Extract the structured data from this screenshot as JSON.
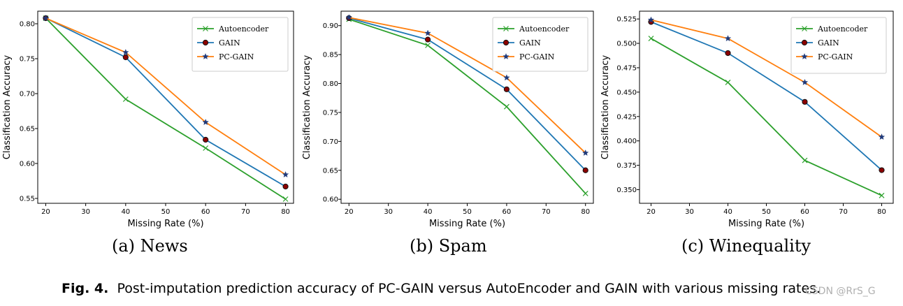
{
  "chart_data": [
    {
      "type": "line",
      "subcaption": "(a) News",
      "xlabel": "Missing Rate (%)",
      "ylabel": "Classification Accuracy",
      "x": [
        20,
        40,
        60,
        80
      ],
      "xticks": [
        20,
        30,
        40,
        50,
        60,
        70,
        80
      ],
      "xlim": [
        18,
        82
      ],
      "yticks": [
        0.55,
        0.6,
        0.65,
        0.7,
        0.75,
        0.8
      ],
      "ytick_labels": [
        "0.55",
        "0.60",
        "0.65",
        "0.70",
        "0.75",
        "0.80"
      ],
      "ylim": [
        0.543,
        0.818
      ],
      "legend_position": "top-right",
      "series": [
        {
          "name": "Autoencoder",
          "values": [
            0.808,
            0.692,
            0.622,
            0.549
          ],
          "color": "#2ca02c",
          "marker": "x"
        },
        {
          "name": "GAIN",
          "values": [
            0.808,
            0.752,
            0.634,
            0.567
          ],
          "color": "#1f77b4",
          "marker": "circle"
        },
        {
          "name": "PC-GAIN",
          "values": [
            0.808,
            0.759,
            0.659,
            0.584
          ],
          "color": "#ff7f0e",
          "marker": "star"
        }
      ]
    },
    {
      "type": "line",
      "subcaption": "(b) Spam",
      "xlabel": "Missing Rate (%)",
      "ylabel": "Classification Accuracy",
      "x": [
        20,
        40,
        60,
        80
      ],
      "xticks": [
        20,
        30,
        40,
        50,
        60,
        70,
        80
      ],
      "xlim": [
        18,
        82
      ],
      "yticks": [
        0.6,
        0.65,
        0.7,
        0.75,
        0.8,
        0.85,
        0.9
      ],
      "ytick_labels": [
        "0.60",
        "0.65",
        "0.70",
        "0.75",
        "0.80",
        "0.85",
        "0.90"
      ],
      "ylim": [
        0.593,
        0.925
      ],
      "legend_position": "top-right",
      "series": [
        {
          "name": "Autoencoder",
          "values": [
            0.911,
            0.866,
            0.76,
            0.61
          ],
          "color": "#2ca02c",
          "marker": "x"
        },
        {
          "name": "GAIN",
          "values": [
            0.913,
            0.876,
            0.79,
            0.65
          ],
          "color": "#1f77b4",
          "marker": "circle"
        },
        {
          "name": "PC-GAIN",
          "values": [
            0.914,
            0.887,
            0.81,
            0.68
          ],
          "color": "#ff7f0e",
          "marker": "star"
        }
      ]
    },
    {
      "type": "line",
      "subcaption": "(c) Winequality",
      "xlabel": "Missing Rate (%)",
      "ylabel": "Classification Accuracy",
      "x": [
        20,
        40,
        60,
        80
      ],
      "xticks": [
        20,
        30,
        40,
        50,
        60,
        70,
        80
      ],
      "xlim": [
        17,
        83
      ],
      "yticks": [
        0.35,
        0.375,
        0.4,
        0.425,
        0.45,
        0.475,
        0.5,
        0.525
      ],
      "ytick_labels": [
        "0.350",
        "0.375",
        "0.400",
        "0.425",
        "0.450",
        "0.475",
        "0.500",
        "0.525"
      ],
      "ylim": [
        0.336,
        0.533
      ],
      "legend_position": "top-right",
      "series": [
        {
          "name": "Autoencoder",
          "values": [
            0.505,
            0.46,
            0.38,
            0.344
          ],
          "color": "#2ca02c",
          "marker": "x"
        },
        {
          "name": "GAIN",
          "values": [
            0.522,
            0.49,
            0.44,
            0.37
          ],
          "color": "#1f77b4",
          "marker": "circle"
        },
        {
          "name": "PC-GAIN",
          "values": [
            0.524,
            0.505,
            0.46,
            0.404
          ],
          "color": "#ff7f0e",
          "marker": "star"
        }
      ]
    }
  ],
  "caption": {
    "label": "Fig. 4.",
    "text": "Post-imputation prediction accuracy of PC-GAIN versus AutoEncoder and GAIN with various missing rates."
  },
  "watermark": "CSDN @RrS_G"
}
